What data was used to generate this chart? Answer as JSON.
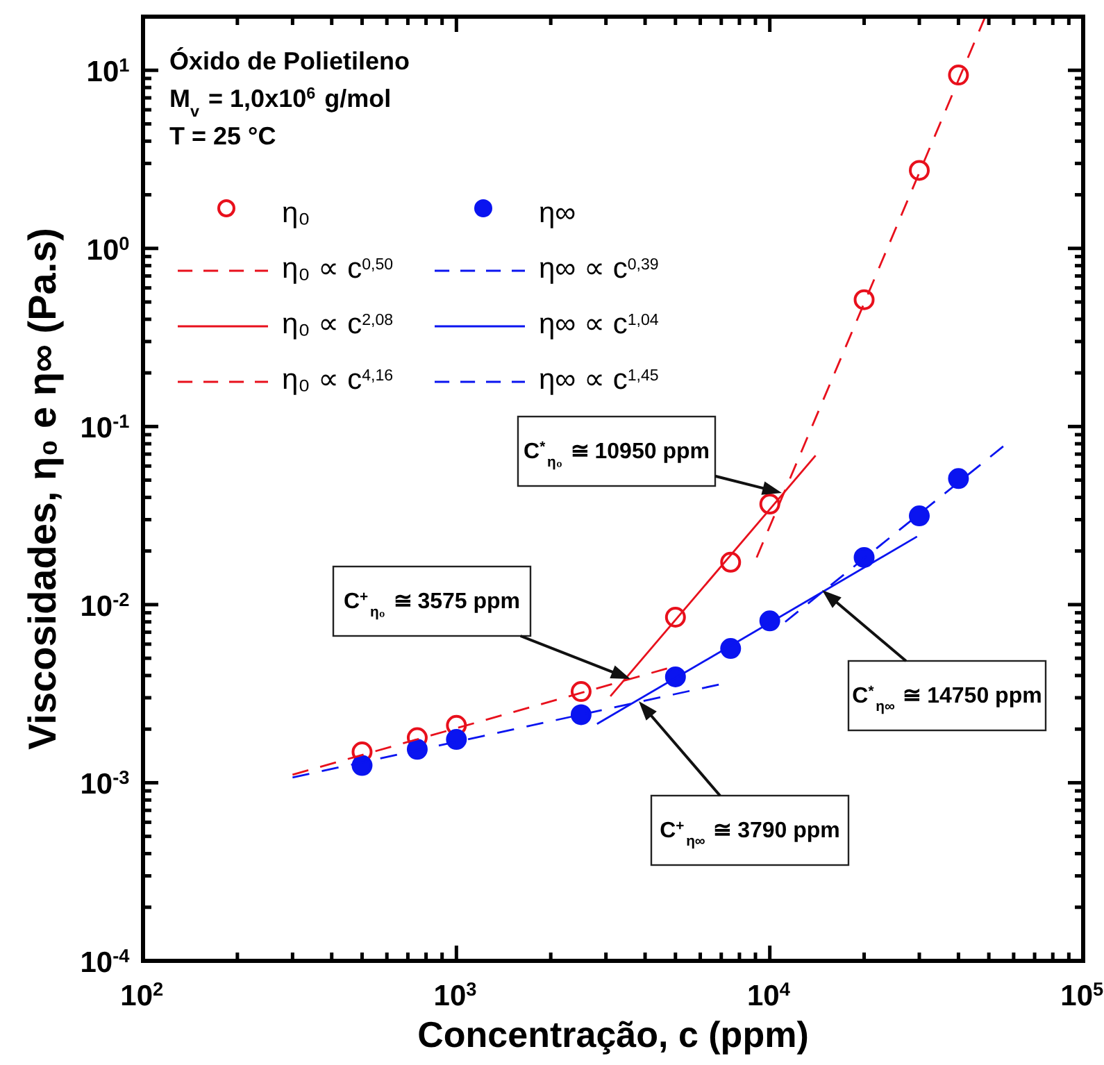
{
  "chart_data": {
    "type": "scatter",
    "xlabel": "Concentração, c (ppm)",
    "ylabel": "Viscosidades, η₀ e η∞ (Pa.s)",
    "log": "xy",
    "legend": "top left",
    "xlim": [
      100,
      100000
    ],
    "ylim": [
      0.0001,
      20
    ],
    "xticks": [
      {
        "value": 100,
        "label": "10$^{2}$"
      },
      {
        "value": 200,
        "label": null
      },
      {
        "value": 300,
        "label": null
      },
      {
        "value": 400,
        "label": null
      },
      {
        "value": 500,
        "label": null
      },
      {
        "value": 600,
        "label": null
      },
      {
        "value": 700,
        "label": null
      },
      {
        "value": 800,
        "label": null
      },
      {
        "value": 900,
        "label": null
      },
      {
        "value": 1000,
        "label": "10$^{3}$"
      },
      {
        "value": 2000,
        "label": null
      },
      {
        "value": 3000,
        "label": null
      },
      {
        "value": 4000,
        "label": null
      },
      {
        "value": 5000,
        "label": null
      },
      {
        "value": 6000,
        "label": null
      },
      {
        "value": 7000,
        "label": null
      },
      {
        "value": 8000,
        "label": null
      },
      {
        "value": 9000,
        "label": null
      },
      {
        "value": 10000,
        "label": "10$^{4}$"
      },
      {
        "value": 20000,
        "label": null
      },
      {
        "value": 30000,
        "label": null
      },
      {
        "value": 40000,
        "label": null
      },
      {
        "value": 50000,
        "label": null
      },
      {
        "value": 60000,
        "label": null
      },
      {
        "value": 70000,
        "label": null
      },
      {
        "value": 80000,
        "label": null
      },
      {
        "value": 90000,
        "label": null
      },
      {
        "value": 100000,
        "label": "10$^{5}$"
      }
    ],
    "yticks": [
      {
        "value": 0.0001,
        "label": "10$^{-4}$"
      },
      {
        "value": 0.0002,
        "label": null
      },
      {
        "value": 0.0003,
        "label": null
      },
      {
        "value": 0.0004,
        "label": null
      },
      {
        "value": 0.0005,
        "label": null
      },
      {
        "value": 0.0006,
        "label": null
      },
      {
        "value": 0.0007,
        "label": null
      },
      {
        "value": 0.0008,
        "label": null
      },
      {
        "value": 0.0009,
        "label": null
      },
      {
        "value": 0.001,
        "label": "10$^{-3}$"
      },
      {
        "value": 0.002,
        "label": null
      },
      {
        "value": 0.003,
        "label": null
      },
      {
        "value": 0.004,
        "label": null
      },
      {
        "value": 0.005,
        "label": null
      },
      {
        "value": 0.006,
        "label": null
      },
      {
        "value": 0.007,
        "label": null
      },
      {
        "value": 0.008,
        "label": null
      },
      {
        "value": 0.009,
        "label": null
      },
      {
        "value": 0.01,
        "label": "10$^{-2}$"
      },
      {
        "value": 0.02,
        "label": null
      },
      {
        "value": 0.03,
        "label": null
      },
      {
        "value": 0.04,
        "label": null
      },
      {
        "value": 0.05,
        "label": null
      },
      {
        "value": 0.06,
        "label": null
      },
      {
        "value": 0.07,
        "label": null
      },
      {
        "value": 0.08,
        "label": null
      },
      {
        "value": 0.09,
        "label": null
      },
      {
        "value": 0.1,
        "label": "10$^{-1}$"
      },
      {
        "value": 0.2,
        "label": null
      },
      {
        "value": 0.3,
        "label": null
      },
      {
        "value": 0.4,
        "label": null
      },
      {
        "value": 0.5,
        "label": null
      },
      {
        "value": 0.6,
        "label": null
      },
      {
        "value": 0.7,
        "label": null
      },
      {
        "value": 0.8,
        "label": null
      },
      {
        "value": 0.9,
        "label": null
      },
      {
        "value": 1,
        "label": "10$^{0}$"
      },
      {
        "value": 2,
        "label": null
      },
      {
        "value": 3,
        "label": null
      },
      {
        "value": 4,
        "label": null
      },
      {
        "value": 5,
        "label": null
      },
      {
        "value": 6,
        "label": null
      },
      {
        "value": 7,
        "label": null
      },
      {
        "value": 8,
        "label": null
      },
      {
        "value": 9,
        "label": null
      },
      {
        "value": 10,
        "label": "10$^{1}$"
      },
      {
        "value": 20,
        "label": null
      }
    ],
    "x": [
      500,
      750,
      1000,
      2500,
      5000,
      7500,
      10000,
      20000,
      30000,
      40000
    ],
    "series": [
      {
        "name": "η₀",
        "marker": "circle",
        "color": "#e8101c",
        "values": [
          0.00149,
          0.00179,
          0.0021,
          0.00325,
          0.0085,
          0.0173,
          0.0367,
          0.515,
          2.74,
          9.4
        ]
      },
      {
        "name": "η∞",
        "marker": "circle",
        "color": "#0a14f0",
        "values": [
          0.00125,
          0.00154,
          0.00175,
          0.00241,
          0.00393,
          0.00567,
          0.0081,
          0.0184,
          0.0315,
          0.051
        ]
      },
      {
        "name": "η₀ ∝ c$^{0,50}$",
        "type": "line",
        "line_style": "dashed",
        "color": "#e8101c",
        "x": [
          300,
          4700
        ],
        "values": [
          0.00111,
          0.00438
        ]
      },
      {
        "name": "η∞ ∝ c$^{0,39}$",
        "type": "line",
        "line_style": "dashed",
        "color": "#0a14f0",
        "x": [
          300,
          6890
        ],
        "values": [
          0.00107,
          0.00356
        ]
      },
      {
        "name": "η₀ ∝ c$^{2,08}$",
        "type": "line",
        "line_style": "solid",
        "color": "#e8101c",
        "x": [
          3100,
          14000
        ],
        "values": [
          0.00306,
          0.0687
        ]
      },
      {
        "name": "η∞ ∝ c$^{1,04}$",
        "type": "line",
        "line_style": "solid",
        "color": "#0a14f0",
        "x": [
          2810,
          29500
        ],
        "values": [
          0.00214,
          0.0241
        ]
      },
      {
        "name": "η₀ ∝ c$^{4,16}$",
        "type": "line",
        "line_style": "dashed",
        "color": "#e8101c",
        "x": [
          9080,
          48700
        ],
        "values": [
          0.0184,
          20
        ]
      },
      {
        "name": "η∞ ∝ c$^{1,45}$",
        "type": "line",
        "line_style": "dashed",
        "color": "#0a14f0",
        "x": [
          11200,
          55600
        ],
        "values": [
          0.008,
          0.0774
        ]
      }
    ],
    "annotations": [
      "Óxido de Polietileno",
      "M$_{v}$ = 1,0x10$^{6}$ g/mol",
      "T = 25 °C",
      "C$^{*}$$_{η₀}$ ≅ 10950 ppm",
      "C$^{+}$$_{η₀}$ ≅ 3575 ppm",
      "C$^{*}$$_{η∞}$ ≅ 14750 ppm",
      "C$^{+}$$_{η∞}$ ≅ 3790 ppm"
    ]
  }
}
